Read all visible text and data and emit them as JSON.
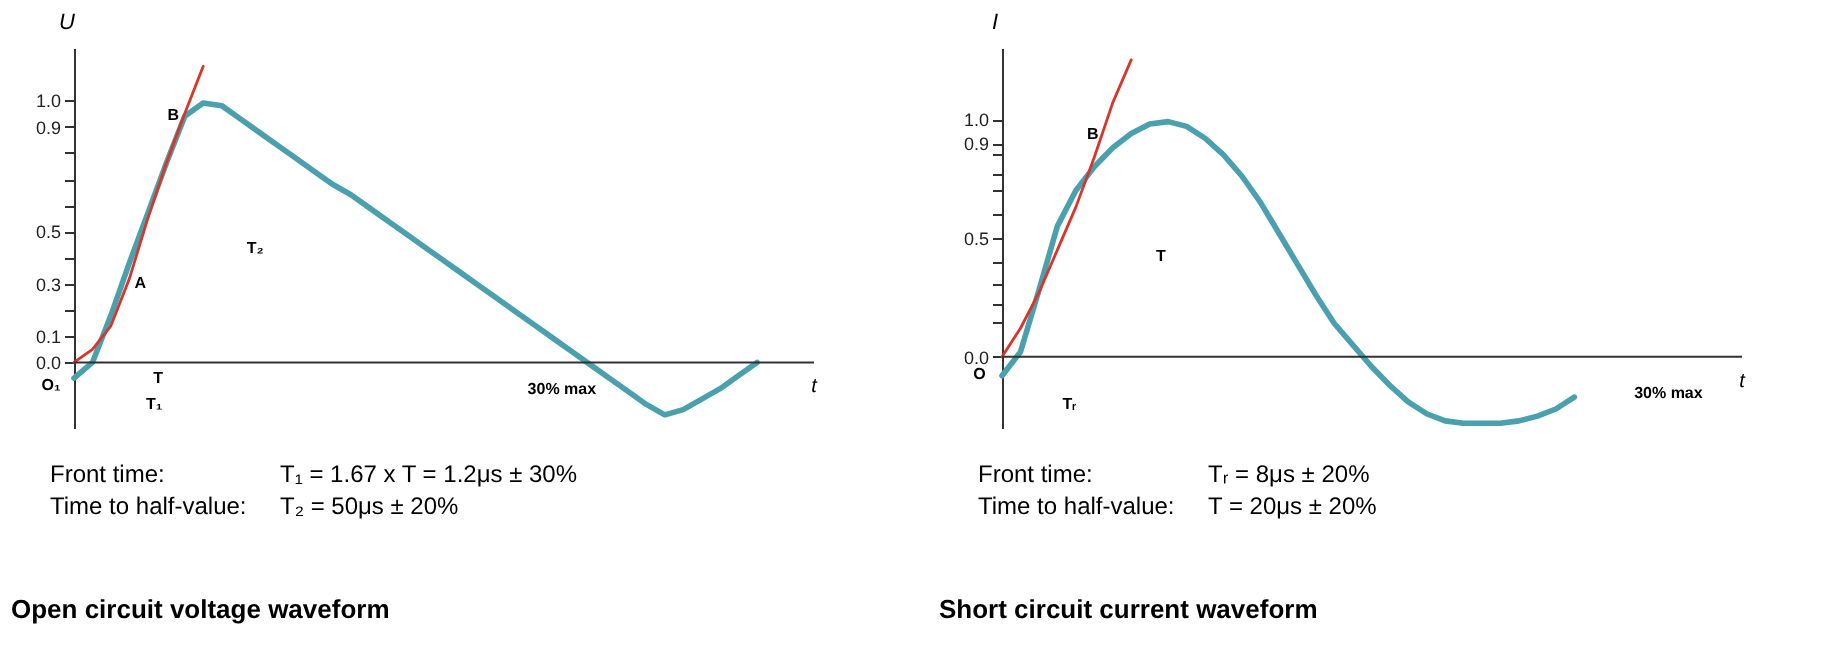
{
  "chart_data": [
    {
      "type": "line",
      "title": "Open circuit voltage waveform",
      "xlabel": "t",
      "ylabel": "U",
      "categories": [
        null,
        null,
        null,
        null,
        null,
        null,
        null,
        null,
        null,
        null,
        null,
        null,
        null,
        null,
        null,
        null,
        null,
        null,
        null,
        null,
        null,
        null,
        null,
        null,
        null,
        null,
        null,
        null,
        null,
        null,
        null,
        null,
        null,
        null,
        null,
        null,
        null,
        null,
        null,
        null
      ],
      "series": [
        {
          "color": "#4aa0ad",
          "values": [
            -0.06,
            0.0,
            0.18,
            0.38,
            0.57,
            0.76,
            0.94,
            0.99,
            0.98,
            0.93,
            0.88,
            0.83,
            0.78,
            0.73,
            0.68,
            0.64,
            0.59,
            0.54,
            0.49,
            0.44,
            0.39,
            0.34,
            0.29,
            0.24,
            0.19,
            0.14,
            0.09,
            0.04,
            -0.01,
            -0.06,
            -0.11,
            -0.16,
            -0.2,
            -0.18,
            -0.14,
            -0.1,
            -0.05,
            0.0,
            null,
            null
          ]
        },
        {
          "color": "#d9352b",
          "values": [
            0.0,
            0.05,
            0.14,
            0.32,
            0.55,
            0.76,
            0.95,
            1.13,
            null,
            null,
            null,
            null,
            null,
            null,
            null,
            null,
            null,
            null,
            null,
            null,
            null,
            null,
            null,
            null,
            null,
            null,
            null,
            null,
            null,
            null,
            null,
            null,
            null,
            null,
            null,
            null,
            null,
            null,
            null,
            null
          ]
        }
      ],
      "ylim": [
        -0.25,
        1.2
      ],
      "yticks": [
        {
          "value": 0,
          "label": "0.0"
        },
        0.1,
        {
          "value": 0.2,
          "label": null
        },
        0.3,
        {
          "value": 0.4,
          "label": null
        },
        0.5,
        {
          "value": 0.6,
          "label": null
        },
        {
          "value": 0.7,
          "label": null
        },
        {
          "value": 0.8,
          "label": null
        },
        0.9,
        {
          "value": 1,
          "label": "1.0"
        }
      ],
      "tick_labels": "y",
      "annotations": [
        "B",
        "A",
        "T₂",
        "T",
        "T₁",
        "30% max",
        "O₁",
        "Front time:",
        "T₁ = 1.67 x T = 1.2μs ± 30%",
        "Time to half-value:",
        "T₂ = 50μs ± 20%"
      ]
    },
    {
      "type": "line",
      "title": "Short circuit current waveform",
      "xlabel": "t",
      "ylabel": "I",
      "categories": [
        null,
        null,
        null,
        null,
        null,
        null,
        null,
        null,
        null,
        null,
        null,
        null,
        null,
        null,
        null,
        null,
        null,
        null,
        null,
        null,
        null,
        null,
        null,
        null,
        null,
        null,
        null,
        null,
        null,
        null,
        null,
        null,
        null,
        null,
        null,
        null,
        null,
        null,
        null,
        null
      ],
      "series": [
        {
          "color": "#4aa0ad",
          "values": [
            -0.08,
            0.02,
            0.28,
            0.55,
            0.7,
            0.8,
            0.88,
            0.94,
            0.98,
            0.99,
            0.97,
            0.92,
            0.85,
            0.76,
            0.65,
            0.52,
            0.39,
            0.26,
            0.14,
            0.05,
            -0.04,
            -0.12,
            -0.19,
            -0.24,
            -0.27,
            -0.28,
            -0.28,
            -0.28,
            -0.27,
            -0.25,
            -0.22,
            -0.17,
            null,
            null,
            null,
            null,
            null,
            null,
            null,
            null
          ]
        },
        {
          "color": "#d9352b",
          "values": [
            0.0,
            0.12,
            0.27,
            0.45,
            0.63,
            0.84,
            1.07,
            1.25,
            null,
            null,
            null,
            null,
            null,
            null,
            null,
            null,
            null,
            null,
            null,
            null,
            null,
            null,
            null,
            null,
            null,
            null,
            null,
            null,
            null,
            null,
            null,
            null,
            null,
            null,
            null,
            null,
            null,
            null,
            null,
            null
          ]
        }
      ],
      "ylim": [
        -0.3,
        1.3
      ],
      "yticks": [
        {
          "value": 0,
          "label": "0.0"
        },
        {
          "value": 0.15,
          "label": null
        },
        {
          "value": 0.22,
          "label": null
        },
        {
          "value": 0.31,
          "label": null
        },
        {
          "value": 0.4,
          "label": null
        },
        0.5,
        {
          "value": 0.6,
          "label": null
        },
        {
          "value": 0.7,
          "label": null
        },
        {
          "value": 0.77,
          "label": null
        },
        {
          "value": 0.85,
          "label": null
        },
        0.9,
        {
          "value": 1,
          "label": "1.0"
        }
      ],
      "tick_labels": "y",
      "annotations": [
        "B",
        "T",
        "Tᵣ",
        "30% max",
        "O",
        "Front time:",
        "Tᵣ = 8μs ± 20%",
        "Time to half-value:",
        "T = 20μs ± 20%"
      ]
    }
  ]
}
